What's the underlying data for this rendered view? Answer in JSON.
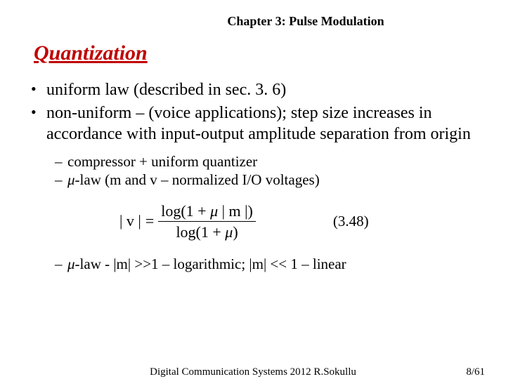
{
  "chapter": "Chapter 3: Pulse Modulation",
  "title": "Quantization",
  "bullets": {
    "b1": "uniform law (described in sec. 3. 6)",
    "b2": "non-uniform – (voice applications); step size increases in accordance with input-output amplitude separation from origin"
  },
  "sub1": {
    "a": "compressor + uniform quantizer",
    "b_prefix": "μ",
    "b_rest": "-law (m and v – normalized I/O voltages)"
  },
  "formula": {
    "lhs": "| v |",
    "eq": "=",
    "num_a": "log(1 + ",
    "num_mu": "μ",
    "num_b": " | m |)",
    "den_a": "log(1 + ",
    "den_mu": "μ",
    "den_b": ")",
    "eqno": "(3.48)"
  },
  "sub2": {
    "prefix": "μ",
    "rest": "-law - |m| >>1 – logarithmic; |m| << 1 – linear"
  },
  "footer": {
    "center": "Digital Communication Systems 2012 R.Sokullu",
    "right": "8/61"
  },
  "colors": {
    "title": "#c00000",
    "text": "#000000",
    "background": "#ffffff"
  },
  "typography": {
    "family": "Times New Roman",
    "title_size_pt": 22,
    "body_size_pt": 18,
    "sub_size_pt": 16,
    "footer_size_pt": 11
  }
}
